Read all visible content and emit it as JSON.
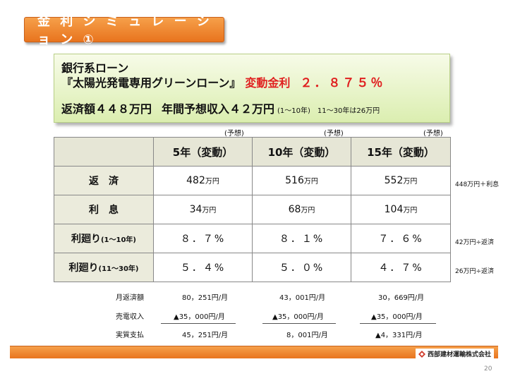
{
  "title": "金 利 シ ミ ュ レ ー シ ョ ン ①",
  "info": {
    "line1": "銀行系ローン",
    "line2_product": "『太陽光発電専用グリーンローン』",
    "line2_rate_label": "変動金利",
    "line2_rate_value": "２．８７５％",
    "line3_repay": "返済額４４８万円",
    "line3_income": "年間予想収入４２万円",
    "line3_note1": "(1～10年)",
    "line3_note2": "11～30年は26万円"
  },
  "forecast_label": "(予想)",
  "table": {
    "columns": [
      "5年（変動）",
      "10年（変動）",
      "15年（変動）"
    ],
    "rows": [
      {
        "label": "返　済",
        "label_small": "",
        "values": [
          "482",
          "516",
          "552"
        ],
        "unit": "万円",
        "note": "448万円＋利息"
      },
      {
        "label": "利　息",
        "label_small": "",
        "values": [
          "34",
          "68",
          "104"
        ],
        "unit": "万円",
        "note": ""
      },
      {
        "label": "利廻り",
        "label_small": "(1～10年)",
        "values": [
          "８．７%",
          "８．１%",
          "７．６%"
        ],
        "unit": "",
        "note": "42万円÷返済"
      },
      {
        "label": "利廻り",
        "label_small": "(11～30年)",
        "values": [
          "５．４%",
          "５．０%",
          "４．７%"
        ],
        "unit": "",
        "note": "26万円÷返済"
      }
    ]
  },
  "summary": {
    "labels": [
      "月返済額",
      "売電収入",
      "実質支払"
    ],
    "col1": [
      "80，251円/月",
      "▲35，000円/月",
      "45，251円/月"
    ],
    "col2": [
      "43，001円/月",
      "▲35，000円/月",
      "8，001円/月"
    ],
    "col3": [
      "30，669円/月",
      "▲35，000円/月",
      "▲4，331円/月"
    ]
  },
  "company": "西部建材運輸株式会社",
  "page_number": "20",
  "colors": {
    "orange": "#e8741e",
    "red": "#e02020",
    "green_box": "#dbeeb0",
    "table_head": "#e6e6d6"
  }
}
